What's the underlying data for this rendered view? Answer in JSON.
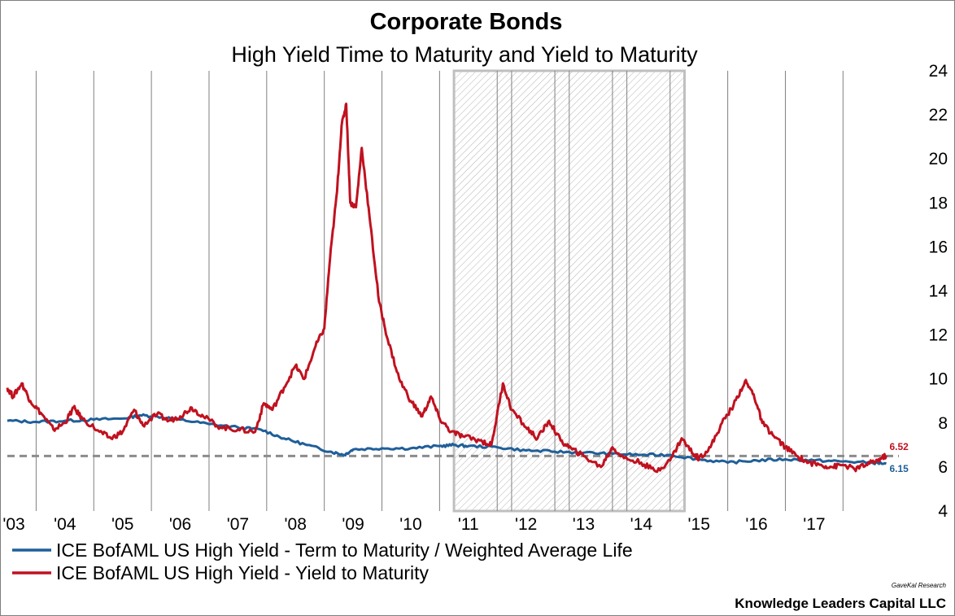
{
  "chart_data": {
    "type": "line",
    "title": "Corporate Bonds",
    "subtitle": "High Yield Time to Maturity and Yield to Maturity",
    "xlabel": "",
    "ylabel": "",
    "x_tick_labels": [
      "'03",
      "'04",
      "'05",
      "'06",
      "'07",
      "'08",
      "'09",
      "'10",
      "'11",
      "'12",
      "'13",
      "'14",
      "'15",
      "'16",
      "'17"
    ],
    "xlim": [
      2003.0,
      2018.3
    ],
    "ylim": [
      4,
      24
    ],
    "y_ticks": [
      4,
      6,
      8,
      10,
      12,
      14,
      16,
      18,
      20,
      22,
      24
    ],
    "grid": "vertical lines at year boundaries",
    "shaded_region": {
      "x_start": 2010.75,
      "x_end": 2014.75,
      "quarter_dividers": [
        2011.75,
        2012.75,
        2013.75
      ],
      "pattern": "diagonal hatch"
    },
    "reference_line": {
      "y": 6.5,
      "style": "dashed",
      "color": "#8c8c8c"
    },
    "legend_position": "bottom-left",
    "series": [
      {
        "name": "ICE BofAML US High Yield - Term to Maturity / Weighted Average Life",
        "color": "#1f5f99",
        "end_label": "6.15",
        "points": [
          [
            2003.0,
            8.1
          ],
          [
            2003.5,
            8.05
          ],
          [
            2004.0,
            8.1
          ],
          [
            2004.5,
            8.15
          ],
          [
            2005.0,
            8.2
          ],
          [
            2005.3,
            8.35
          ],
          [
            2005.6,
            8.3
          ],
          [
            2006.0,
            8.15
          ],
          [
            2006.5,
            7.95
          ],
          [
            2007.0,
            7.8
          ],
          [
            2007.4,
            7.7
          ],
          [
            2007.8,
            7.3
          ],
          [
            2008.2,
            7.0
          ],
          [
            2008.6,
            6.7
          ],
          [
            2008.85,
            6.55
          ],
          [
            2009.0,
            6.8
          ],
          [
            2009.5,
            6.85
          ],
          [
            2010.0,
            6.85
          ],
          [
            2010.5,
            6.95
          ],
          [
            2010.75,
            7.0
          ],
          [
            2011.0,
            6.95
          ],
          [
            2011.5,
            6.9
          ],
          [
            2012.0,
            6.75
          ],
          [
            2012.5,
            6.7
          ],
          [
            2013.0,
            6.65
          ],
          [
            2013.5,
            6.6
          ],
          [
            2014.0,
            6.55
          ],
          [
            2014.5,
            6.55
          ],
          [
            2015.0,
            6.35
          ],
          [
            2015.5,
            6.2
          ],
          [
            2016.0,
            6.3
          ],
          [
            2016.5,
            6.35
          ],
          [
            2017.0,
            6.3
          ],
          [
            2017.5,
            6.25
          ],
          [
            2018.0,
            6.2
          ],
          [
            2018.25,
            6.15
          ]
        ]
      },
      {
        "name": "ICE BofAML US High Yield - Yield to Maturity",
        "color": "#c0111f",
        "end_label": "6.52",
        "points": [
          [
            2003.0,
            9.6
          ],
          [
            2003.1,
            9.2
          ],
          [
            2003.25,
            9.8
          ],
          [
            2003.4,
            9.0
          ],
          [
            2003.6,
            8.4
          ],
          [
            2003.8,
            7.7
          ],
          [
            2004.0,
            8.0
          ],
          [
            2004.15,
            8.7
          ],
          [
            2004.3,
            8.2
          ],
          [
            2004.6,
            7.6
          ],
          [
            2004.8,
            7.3
          ],
          [
            2005.0,
            7.6
          ],
          [
            2005.2,
            8.6
          ],
          [
            2005.35,
            7.9
          ],
          [
            2005.6,
            8.4
          ],
          [
            2005.8,
            8.1
          ],
          [
            2006.0,
            8.3
          ],
          [
            2006.2,
            8.7
          ],
          [
            2006.4,
            8.3
          ],
          [
            2006.7,
            7.8
          ],
          [
            2007.0,
            7.7
          ],
          [
            2007.3,
            7.6
          ],
          [
            2007.45,
            8.9
          ],
          [
            2007.6,
            8.6
          ],
          [
            2007.8,
            9.6
          ],
          [
            2008.0,
            10.6
          ],
          [
            2008.15,
            10.0
          ],
          [
            2008.35,
            11.5
          ],
          [
            2008.5,
            12.3
          ],
          [
            2008.6,
            15.5
          ],
          [
            2008.72,
            18.5
          ],
          [
            2008.8,
            21.5
          ],
          [
            2008.88,
            22.5
          ],
          [
            2008.95,
            18.0
          ],
          [
            2009.05,
            17.8
          ],
          [
            2009.15,
            20.5
          ],
          [
            2009.3,
            17.0
          ],
          [
            2009.45,
            13.5
          ],
          [
            2009.6,
            11.8
          ],
          [
            2009.8,
            10.0
          ],
          [
            2010.0,
            9.0
          ],
          [
            2010.2,
            8.3
          ],
          [
            2010.35,
            9.2
          ],
          [
            2010.5,
            8.2
          ],
          [
            2010.7,
            7.6
          ],
          [
            2010.9,
            7.4
          ],
          [
            2011.2,
            7.2
          ],
          [
            2011.4,
            7.0
          ],
          [
            2011.6,
            9.8
          ],
          [
            2011.75,
            8.6
          ],
          [
            2012.0,
            7.8
          ],
          [
            2012.2,
            7.3
          ],
          [
            2012.4,
            8.1
          ],
          [
            2012.6,
            7.2
          ],
          [
            2012.8,
            6.8
          ],
          [
            2013.0,
            6.5
          ],
          [
            2013.3,
            6.0
          ],
          [
            2013.5,
            6.9
          ],
          [
            2013.7,
            6.4
          ],
          [
            2014.0,
            6.2
          ],
          [
            2014.25,
            5.8
          ],
          [
            2014.5,
            6.3
          ],
          [
            2014.7,
            7.3
          ],
          [
            2014.9,
            6.6
          ],
          [
            2015.0,
            6.4
          ],
          [
            2015.2,
            6.9
          ],
          [
            2015.4,
            8.0
          ],
          [
            2015.6,
            8.8
          ],
          [
            2015.8,
            9.9
          ],
          [
            2015.95,
            9.3
          ],
          [
            2016.1,
            8.0
          ],
          [
            2016.3,
            7.4
          ],
          [
            2016.5,
            6.9
          ],
          [
            2016.7,
            6.5
          ],
          [
            2016.9,
            6.2
          ],
          [
            2017.1,
            6.1
          ],
          [
            2017.3,
            6.0
          ],
          [
            2017.5,
            6.1
          ],
          [
            2017.7,
            5.9
          ],
          [
            2017.9,
            6.1
          ],
          [
            2018.1,
            6.3
          ],
          [
            2018.25,
            6.52
          ]
        ]
      }
    ]
  },
  "footer": {
    "source_note": "GaveKal Research",
    "credit": "Knowledge Leaders Capital LLC"
  }
}
